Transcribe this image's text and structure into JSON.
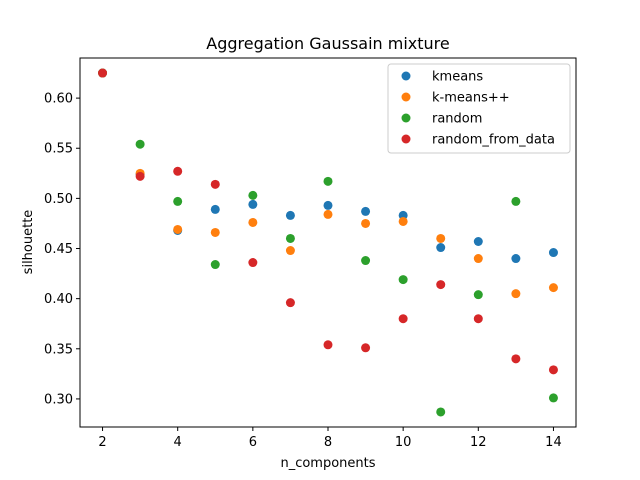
{
  "chart_data": {
    "type": "scatter",
    "title": "Aggregation Gaussain mixture",
    "xlabel": "n_components",
    "ylabel": "silhouette",
    "xlim": [
      1.4,
      14.6
    ],
    "ylim": [
      0.272,
      0.64
    ],
    "xticks": [
      "2",
      "4",
      "6",
      "8",
      "10",
      "12",
      "14"
    ],
    "yticks": [
      "0.30",
      "0.35",
      "0.40",
      "0.45",
      "0.50",
      "0.55",
      "0.60"
    ],
    "grid": false,
    "legend_position": "top-right",
    "x": [
      2,
      3,
      4,
      5,
      6,
      7,
      8,
      9,
      10,
      11,
      12,
      13,
      14
    ],
    "series": [
      {
        "name": "kmeans",
        "color": "#1f77b4",
        "values": [
          0.625,
          0.524,
          0.468,
          0.489,
          0.494,
          0.483,
          0.493,
          0.487,
          0.483,
          0.451,
          0.457,
          0.44,
          0.446
        ]
      },
      {
        "name": "k-means++",
        "color": "#ff7f0e",
        "values": [
          0.625,
          0.525,
          0.469,
          0.466,
          0.476,
          0.448,
          0.484,
          0.475,
          0.477,
          0.46,
          0.44,
          0.405,
          0.411
        ]
      },
      {
        "name": "random",
        "color": "#2ca02c",
        "values": [
          0.625,
          0.554,
          0.497,
          0.434,
          0.503,
          0.46,
          0.517,
          0.438,
          0.419,
          0.287,
          0.404,
          0.497,
          0.301
        ]
      },
      {
        "name": "random_from_data",
        "color": "#d62728",
        "values": [
          0.625,
          0.522,
          0.527,
          0.514,
          0.436,
          0.396,
          0.354,
          0.351,
          0.38,
          0.414,
          0.38,
          0.34,
          0.329
        ]
      }
    ]
  }
}
